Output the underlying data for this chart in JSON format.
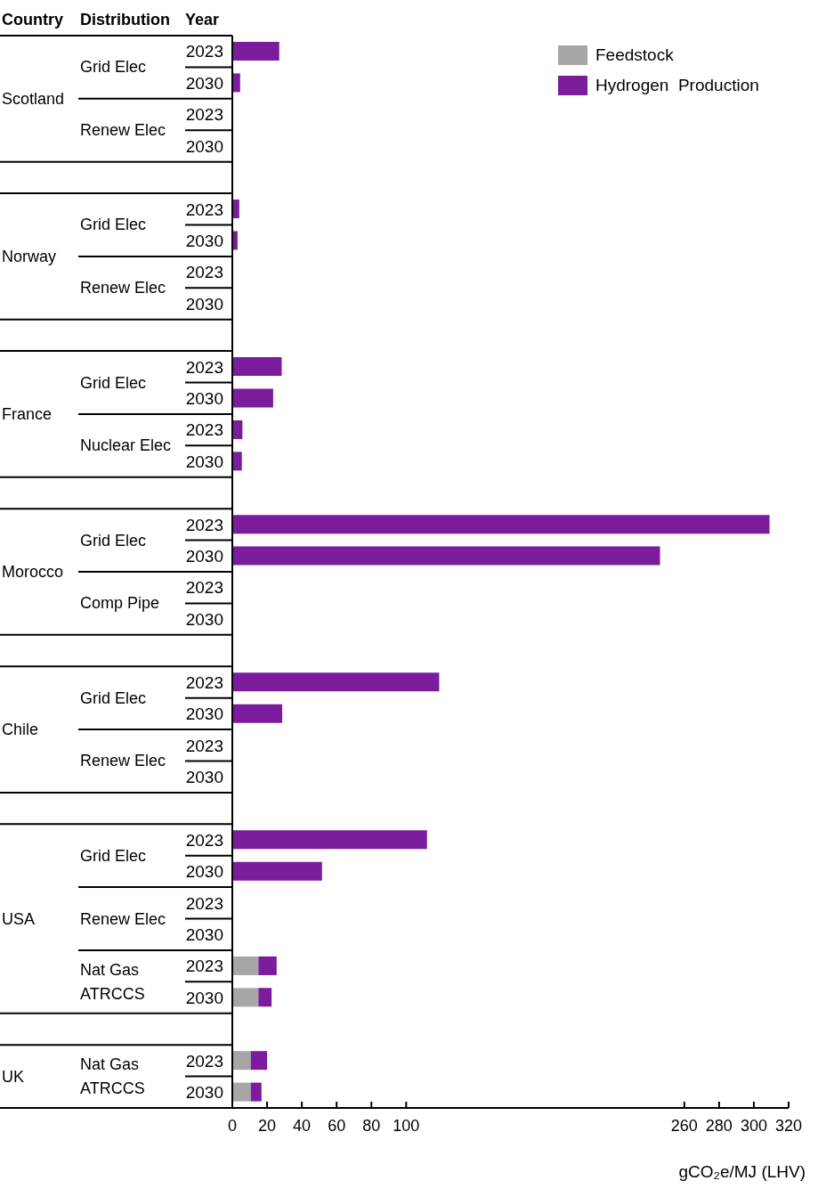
{
  "chart_data": {
    "type": "bar",
    "orientation": "horizontal",
    "stacked": true,
    "categories": [
      "2023",
      "2030",
      "2023",
      "2030",
      null,
      "2023",
      "2030",
      "2023",
      "2030",
      null,
      "2023",
      "2030",
      "2023",
      "2030",
      null,
      "2023",
      "2030",
      "2023",
      "2030",
      null,
      "2023",
      "2030",
      "2023",
      "2030",
      null,
      "2023",
      "2030",
      "2023",
      "2030",
      "2023",
      "2030",
      null,
      "2023",
      "2030"
    ],
    "series": [
      {
        "name": "Feedstock",
        "color": "#a6a6a6",
        "values": [
          null,
          null,
          null,
          null,
          null,
          null,
          null,
          null,
          null,
          null,
          null,
          null,
          null,
          null,
          null,
          null,
          null,
          null,
          null,
          null,
          null,
          null,
          null,
          null,
          null,
          null,
          null,
          null,
          null,
          15,
          15,
          null,
          10.6,
          10.6
        ]
      },
      {
        "name": "Hydrogen  Production",
        "color": "#7b1c9c",
        "values": [
          27,
          4.5,
          null,
          null,
          null,
          4,
          3,
          null,
          null,
          null,
          28.4,
          23.5,
          5.8,
          5.5,
          null,
          309,
          246,
          null,
          null,
          null,
          119,
          28.7,
          null,
          null,
          null,
          112,
          51.6,
          null,
          null,
          10.5,
          7.6,
          null,
          9.4,
          6.2
        ]
      }
    ],
    "xlabel": "gCO₂e/MJ  (LHV)",
    "xlim": [
      0,
      320
    ],
    "xticks": [
      0,
      20,
      40,
      60,
      80,
      100,
      260,
      280,
      300,
      320
    ],
    "legend": "top right",
    "annotations": [
      "Country",
      "Distribution",
      "Year",
      "Scotland",
      "Grid Elec",
      "Renew Elec",
      "Norway",
      "Grid Elec",
      "Renew Elec",
      "France",
      "Grid Elec",
      "Nuclear Elec",
      "Morocco",
      "Grid Elec",
      "Comp Pipe",
      "Chile",
      "Grid Elec",
      "Renew Elec",
      "USA",
      "Grid Elec",
      "Renew Elec",
      "Nat Gas ATRCCS",
      "UK",
      "Nat Gas ATRCCS"
    ]
  }
}
